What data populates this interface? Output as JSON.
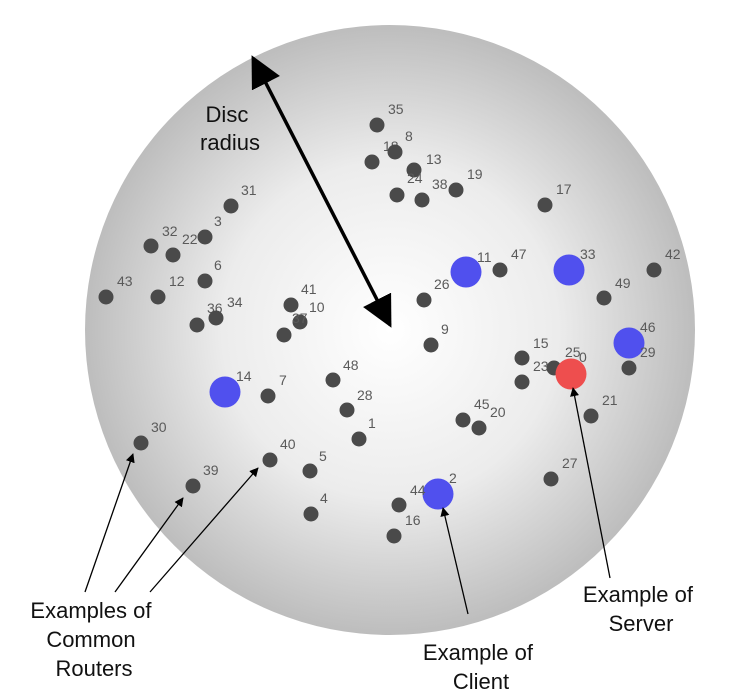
{
  "colors": {
    "router": "#4a4a4a",
    "client": "#5050ee",
    "server": "#ee4e4e",
    "disc_center": "#ffffff",
    "disc_edge": "#b9b9b9",
    "label": "#5a5a5a",
    "arrow": "#000000"
  },
  "nodes": [
    {
      "id": "35",
      "label": "35",
      "type": "router"
    },
    {
      "id": "18",
      "label": "18",
      "type": "router"
    },
    {
      "id": "8",
      "label": "8",
      "type": "router"
    },
    {
      "id": "13",
      "label": "13",
      "type": "router"
    },
    {
      "id": "19",
      "label": "19",
      "type": "router"
    },
    {
      "id": "24",
      "label": "24",
      "type": "router"
    },
    {
      "id": "38",
      "label": "38",
      "type": "router"
    },
    {
      "id": "17",
      "label": "17",
      "type": "router"
    },
    {
      "id": "31",
      "label": "31",
      "type": "router"
    },
    {
      "id": "3",
      "label": "3",
      "type": "router"
    },
    {
      "id": "32",
      "label": "32",
      "type": "router"
    },
    {
      "id": "22",
      "label": "22",
      "type": "router"
    },
    {
      "id": "6",
      "label": "6",
      "type": "router"
    },
    {
      "id": "43",
      "label": "43",
      "type": "router"
    },
    {
      "id": "12",
      "label": "12",
      "type": "router"
    },
    {
      "id": "36",
      "label": "36",
      "type": "router"
    },
    {
      "id": "34",
      "label": "34",
      "type": "router"
    },
    {
      "id": "41",
      "label": "41",
      "type": "router"
    },
    {
      "id": "10",
      "label": "10",
      "type": "router"
    },
    {
      "id": "37",
      "label": "37",
      "type": "router"
    },
    {
      "id": "11",
      "label": "11",
      "type": "client"
    },
    {
      "id": "47",
      "label": "47",
      "type": "router"
    },
    {
      "id": "33",
      "label": "33",
      "type": "client"
    },
    {
      "id": "42",
      "label": "42",
      "type": "router"
    },
    {
      "id": "26",
      "label": "26",
      "type": "router"
    },
    {
      "id": "49",
      "label": "49",
      "type": "router"
    },
    {
      "id": "9",
      "label": "9",
      "type": "router"
    },
    {
      "id": "46",
      "label": "46",
      "type": "client"
    },
    {
      "id": "29",
      "label": "29",
      "type": "router"
    },
    {
      "id": "15",
      "label": "15",
      "type": "router"
    },
    {
      "id": "23",
      "label": "23",
      "type": "router"
    },
    {
      "id": "25",
      "label": "25",
      "type": "router"
    },
    {
      "id": "0",
      "label": "0",
      "type": "server"
    },
    {
      "id": "48",
      "label": "48",
      "type": "router"
    },
    {
      "id": "14",
      "label": "14",
      "type": "client"
    },
    {
      "id": "7",
      "label": "7",
      "type": "router"
    },
    {
      "id": "28",
      "label": "28",
      "type": "router"
    },
    {
      "id": "21",
      "label": "21",
      "type": "router"
    },
    {
      "id": "45",
      "label": "45",
      "type": "router"
    },
    {
      "id": "20",
      "label": "20",
      "type": "router"
    },
    {
      "id": "1",
      "label": "1",
      "type": "router"
    },
    {
      "id": "30",
      "label": "30",
      "type": "router"
    },
    {
      "id": "40",
      "label": "40",
      "type": "router"
    },
    {
      "id": "5",
      "label": "5",
      "type": "router"
    },
    {
      "id": "39",
      "label": "39",
      "type": "router"
    },
    {
      "id": "27",
      "label": "27",
      "type": "router"
    },
    {
      "id": "2",
      "label": "2",
      "type": "client"
    },
    {
      "id": "44",
      "label": "44",
      "type": "router"
    },
    {
      "id": "4",
      "label": "4",
      "type": "router"
    },
    {
      "id": "16",
      "label": "16",
      "type": "router"
    }
  ],
  "annotations": {
    "disc_radius": {
      "line1": "Disc",
      "line2": "radius"
    },
    "routers": {
      "line1": "Examples of",
      "line2": "Common",
      "line3": "Routers"
    },
    "client": {
      "line1": "Example of",
      "line2": "Client"
    },
    "server": {
      "line1": "Example of",
      "line2": "Server"
    }
  }
}
